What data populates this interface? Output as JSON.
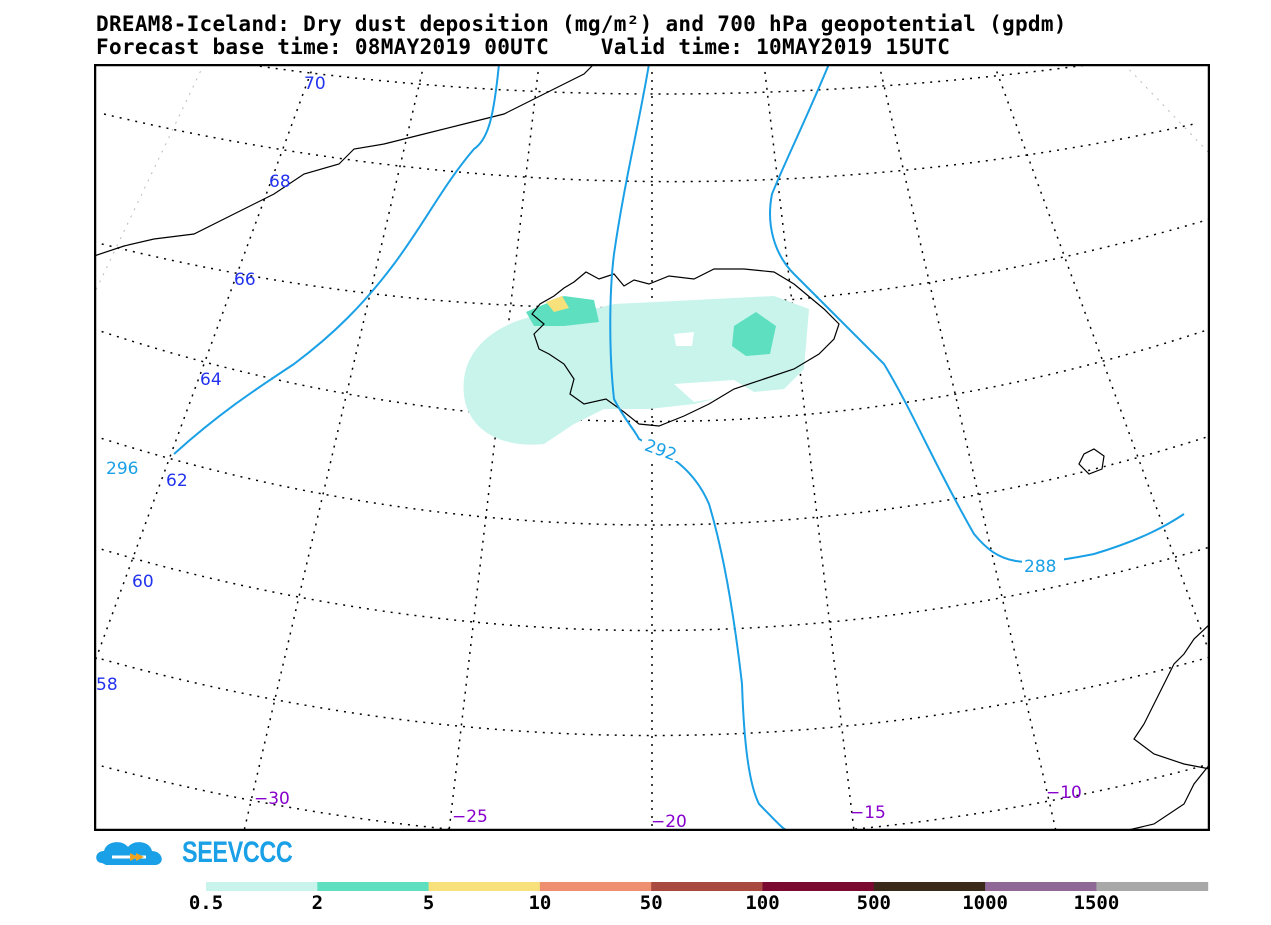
{
  "header": {
    "line1": "DREAM8-Iceland: Dry dust deposition (mg/m²) and 700 hPa geopotential (gpdm)",
    "line2": "Forecast base time: 08MAY2019 00UTC    Valid time: 10MAY2019 15UTC"
  },
  "map": {
    "lat_labels": [
      "70",
      "68",
      "66",
      "64",
      "62",
      "60",
      "58"
    ],
    "lon_labels": [
      "−30",
      "−25",
      "−20",
      "−15",
      "−10"
    ],
    "contours": [
      {
        "value": "296",
        "color": "#1aa0e6"
      },
      {
        "value": "292",
        "color": "#1aa0e6"
      },
      {
        "value": "288",
        "color": "#1aa0e6"
      }
    ],
    "lat_label_color": "#2233ee",
    "lon_label_color": "#8800cc"
  },
  "logo": {
    "text": "SEEVCCC",
    "color": "#1aa0e6"
  },
  "legend": {
    "colors": [
      "#c8f4ec",
      "#5ee0c0",
      "#f8e07a",
      "#ee9070",
      "#a84a40",
      "#7a0a30",
      "#3a2a1a",
      "#906898",
      "#a8a8a8"
    ],
    "labels": [
      "0.5",
      "2",
      "5",
      "10",
      "50",
      "100",
      "500",
      "1000",
      "1500"
    ]
  }
}
